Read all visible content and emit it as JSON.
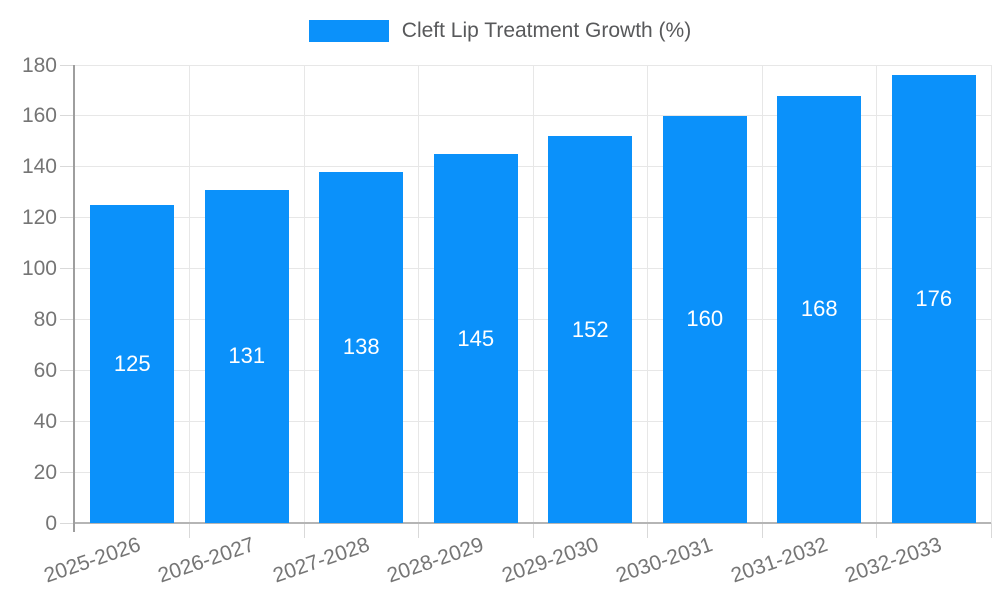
{
  "legend": {
    "label": "Cleft Lip Treatment Growth (%)"
  },
  "chart_data": {
    "type": "bar",
    "title": "Cleft Lip Treatment Growth (%)",
    "series_name": "Cleft Lip Treatment Growth (%)",
    "categories": [
      "2025-2026",
      "2026-2027",
      "2027-2028",
      "2028-2029",
      "2029-2030",
      "2030-2031",
      "2031-2032",
      "2032-2033"
    ],
    "values": [
      125,
      131,
      138,
      145,
      152,
      160,
      168,
      176
    ],
    "xlabel": "",
    "ylabel": "",
    "ylim": [
      0,
      180
    ],
    "ytick_step": 20,
    "grid": true,
    "legend_position": "top",
    "bar_labels_shown": true,
    "colors": {
      "bar": "#0b91fa",
      "bar_label": "#ffffff",
      "axis_label": "#757575",
      "legend_text": "#58595b",
      "gridline": "#e7e7e7",
      "x_axis_line": "#b5b5b5",
      "y_axis_line": "#9e9e9e",
      "tick": "#d9d9d9",
      "background": "#ffffff"
    }
  }
}
